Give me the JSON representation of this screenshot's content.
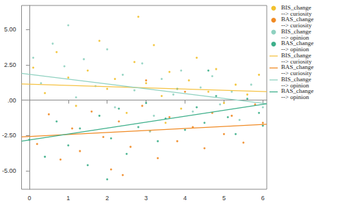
{
  "chart_data": {
    "type": "scatter",
    "legend": "right",
    "grid": false,
    "xlim": [
      -0.2,
      6.1
    ],
    "xticks": [
      0,
      1,
      2,
      3,
      4,
      5,
      6
    ],
    "ylim": [
      -6.3,
      6.7
    ],
    "yticks": [
      {
        "value": -5,
        "label": "-5.00"
      },
      {
        "value": -2.5,
        "label": "-2.50"
      },
      {
        "value": 0,
        "label": ".00"
      },
      {
        "value": 2.5,
        "label": "2.50"
      },
      {
        "value": 5,
        "label": "5.00"
      }
    ],
    "series": [
      {
        "name": "BIS_change --> curiosity",
        "type": "scatter",
        "marker": "circle",
        "color": "#f2c12e",
        "x": [
          0.1,
          0.4,
          0.7,
          1.0,
          1.2,
          1.5,
          1.8,
          2.0,
          2.2,
          2.5,
          2.7,
          3.0,
          3.2,
          3.4,
          3.6,
          3.9,
          4.1,
          4.3,
          4.6,
          4.8,
          5.0,
          5.3,
          5.6,
          5.9,
          2.8,
          3.5
        ],
        "values": [
          2.3,
          0.5,
          3.4,
          1.6,
          -0.4,
          2.1,
          4.2,
          0.8,
          1.5,
          -0.9,
          2.7,
          1.2,
          3.9,
          0.3,
          2.0,
          -0.6,
          1.4,
          3.0,
          0.6,
          2.2,
          -0.2,
          1.1,
          0.4,
          1.8,
          5.9,
          -1.6
        ]
      },
      {
        "name": "BAS_change --> curiosity",
        "type": "scatter",
        "marker": "circle",
        "color": "#f08a24",
        "x": [
          0.2,
          0.5,
          0.8,
          1.1,
          1.3,
          1.6,
          1.9,
          2.1,
          2.3,
          2.6,
          2.9,
          3.1,
          3.3,
          3.6,
          3.8,
          4.0,
          4.2,
          4.5,
          4.7,
          5.0,
          5.2,
          5.5,
          5.8,
          6.0,
          2.4,
          3.0
        ],
        "values": [
          -3.1,
          -1.0,
          -4.2,
          -2.0,
          -3.6,
          -0.8,
          -2.6,
          -4.9,
          -1.5,
          -3.3,
          -0.4,
          -2.2,
          -4.1,
          -1.2,
          -2.9,
          0.6,
          -1.9,
          -3.4,
          -0.9,
          -2.4,
          -1.1,
          -3.0,
          -0.3,
          -1.6,
          -5.3,
          1.4
        ]
      },
      {
        "name": "BIS_change --> opinion",
        "type": "scatter",
        "marker": "circle",
        "color": "#8fd1c0",
        "x": [
          0.1,
          0.3,
          0.6,
          0.9,
          1.2,
          1.4,
          1.7,
          2.0,
          2.2,
          2.4,
          2.7,
          2.9,
          3.2,
          3.4,
          3.7,
          3.9,
          4.2,
          4.4,
          4.7,
          4.9,
          5.2,
          5.4,
          5.7,
          6.0,
          1.0,
          3.1
        ],
        "values": [
          3.0,
          1.2,
          4.0,
          2.4,
          0.2,
          2.9,
          1.0,
          3.6,
          -0.5,
          1.8,
          0.7,
          2.6,
          -1.1,
          1.5,
          0.4,
          2.1,
          -0.8,
          0.9,
          1.7,
          -0.3,
          0.6,
          -1.4,
          1.1,
          -0.5,
          5.3,
          -2.2
        ]
      },
      {
        "name": "BAS_change --> opinion",
        "type": "scatter",
        "marker": "circle",
        "color": "#3daf8a",
        "x": [
          0.0,
          0.4,
          0.7,
          1.0,
          1.3,
          1.5,
          1.8,
          2.1,
          2.3,
          2.5,
          2.8,
          3.0,
          3.3,
          3.5,
          3.8,
          4.0,
          4.3,
          4.5,
          4.8,
          5.1,
          5.3,
          5.6,
          5.9,
          6.0,
          2.0,
          4.6
        ],
        "values": [
          -2.8,
          -4.0,
          -1.5,
          -3.2,
          -2.0,
          -4.6,
          -1.1,
          -2.7,
          -0.6,
          -3.8,
          -1.9,
          -0.2,
          -2.9,
          -1.3,
          0.8,
          -2.1,
          -0.5,
          -1.6,
          0.3,
          -1.2,
          -2.4,
          0.1,
          -0.9,
          -1.8,
          -5.6,
          2.1
        ]
      },
      {
        "name": "BIS_change --> curiosity",
        "type": "line",
        "line_style": "solid",
        "color": "#f5c242",
        "x": [
          -0.2,
          6.1
        ],
        "values": [
          1.15,
          0.6
        ]
      },
      {
        "name": "BAS_change --> curiosity",
        "type": "line",
        "line_style": "solid",
        "color": "#f08a24",
        "x": [
          -0.2,
          6.1
        ],
        "values": [
          -2.6,
          -1.7
        ]
      },
      {
        "name": "BIS_change --> opinion",
        "type": "line",
        "line_style": "solid",
        "color": "#8fd1c0",
        "x": [
          -0.2,
          6.1
        ],
        "values": [
          1.9,
          -0.25
        ]
      },
      {
        "name": "BAS_change --> opinion",
        "type": "line",
        "line_style": "solid",
        "color": "#3daf8a",
        "x": [
          -0.2,
          6.1
        ],
        "values": [
          -2.9,
          -0.25
        ]
      }
    ]
  }
}
